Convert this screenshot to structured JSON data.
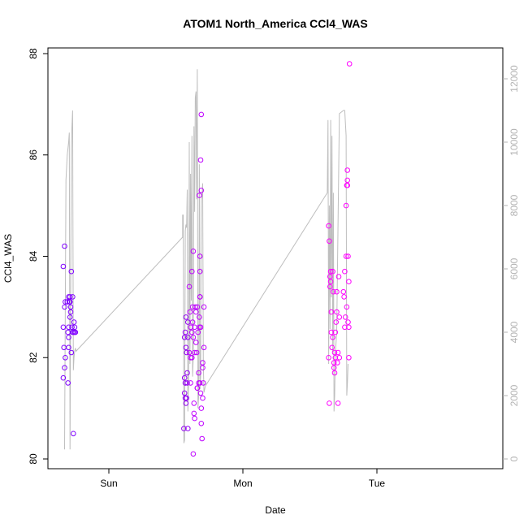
{
  "chart_data": {
    "type": "scatter",
    "title": "ATOM1 North_America CCl4_WAS",
    "xlabel": "Date",
    "ylabel": "CCl4_WAS",
    "x_ticks": [
      "Sun",
      "Mon",
      "Tue"
    ],
    "ylim": [
      80,
      88
    ],
    "y_ticks": [
      80,
      82,
      84,
      86,
      88
    ],
    "y2lim": [
      0,
      12000
    ],
    "y2_ticks": [
      0,
      2000,
      4000,
      6000,
      8000,
      10000,
      12000
    ],
    "grid": false,
    "point_series": {
      "colors": [
        "#7f00ff",
        "#9400f4",
        "#bf00ff",
        "#ff00ff"
      ],
      "points": [
        [
          -0.34,
          81.6
        ],
        [
          -0.335,
          82.2
        ],
        [
          -0.33,
          81.8
        ],
        [
          -0.325,
          82.0
        ],
        [
          -0.33,
          83.0
        ],
        [
          -0.325,
          83.1
        ],
        [
          -0.34,
          82.6
        ],
        [
          -0.34,
          83.8
        ],
        [
          -0.33,
          84.2
        ],
        [
          -0.31,
          83.1
        ],
        [
          -0.3,
          83.2
        ],
        [
          -0.295,
          83.1
        ],
        [
          -0.29,
          83.2
        ],
        [
          -0.3,
          82.6
        ],
        [
          -0.305,
          82.5
        ],
        [
          -0.3,
          82.4
        ],
        [
          -0.3,
          82.2
        ],
        [
          -0.305,
          81.5
        ],
        [
          -0.29,
          82.8
        ],
        [
          -0.285,
          82.9
        ],
        [
          -0.285,
          83.0
        ],
        [
          -0.28,
          83.7
        ],
        [
          -0.28,
          82.1
        ],
        [
          -0.275,
          82.6
        ],
        [
          -0.27,
          82.5
        ],
        [
          -0.27,
          83.2
        ],
        [
          -0.29,
          83.1
        ],
        [
          -0.26,
          82.7
        ],
        [
          -0.255,
          82.6
        ],
        [
          -0.255,
          82.5
        ],
        [
          -0.25,
          82.5
        ],
        [
          -0.265,
          82.5
        ],
        [
          -0.265,
          80.5
        ],
        [
          0.56,
          80.6
        ],
        [
          0.565,
          81.3
        ],
        [
          0.565,
          81.6
        ],
        [
          0.57,
          81.2
        ],
        [
          0.575,
          81.1
        ],
        [
          0.57,
          81.5
        ],
        [
          0.575,
          82.8
        ],
        [
          0.57,
          82.5
        ],
        [
          0.565,
          82.4
        ],
        [
          0.575,
          82.2
        ],
        [
          0.58,
          82.1
        ],
        [
          0.585,
          81.7
        ],
        [
          0.58,
          81.2
        ],
        [
          0.59,
          82.4
        ],
        [
          0.59,
          82.7
        ],
        [
          0.585,
          81.5
        ],
        [
          0.6,
          83.4
        ],
        [
          0.6,
          82.1
        ],
        [
          0.605,
          82.9
        ],
        [
          0.61,
          82.6
        ],
        [
          0.61,
          82.0
        ],
        [
          0.62,
          82.5
        ],
        [
          0.625,
          83.0
        ],
        [
          0.62,
          82.0
        ],
        [
          0.625,
          82.7
        ],
        [
          0.63,
          82.4
        ],
        [
          0.63,
          84.1
        ],
        [
          0.62,
          83.7
        ],
        [
          0.635,
          81.1
        ],
        [
          0.635,
          80.9
        ],
        [
          0.64,
          82.1
        ],
        [
          0.64,
          82.6
        ],
        [
          0.64,
          80.8
        ],
        [
          0.645,
          83.0
        ],
        [
          0.65,
          82.9
        ],
        [
          0.65,
          82.3
        ],
        [
          0.655,
          82.1
        ],
        [
          0.66,
          81.4
        ],
        [
          0.66,
          83.0
        ],
        [
          0.665,
          82.5
        ],
        [
          0.67,
          81.5
        ],
        [
          0.67,
          81.7
        ],
        [
          0.675,
          82.8
        ],
        [
          0.675,
          82.6
        ],
        [
          0.68,
          81.5
        ],
        [
          0.68,
          83.2
        ],
        [
          0.685,
          82.6
        ],
        [
          0.685,
          81.3
        ],
        [
          0.69,
          81.0
        ],
        [
          0.695,
          80.4
        ],
        [
          0.69,
          80.7
        ],
        [
          0.7,
          81.8
        ],
        [
          0.7,
          81.9
        ],
        [
          0.705,
          81.5
        ],
        [
          0.71,
          83.0
        ],
        [
          0.71,
          82.2
        ],
        [
          0.63,
          80.1
        ],
        [
          0.66,
          81.4
        ],
        [
          0.685,
          85.9
        ],
        [
          0.69,
          85.3
        ],
        [
          0.675,
          85.2
        ],
        [
          0.69,
          86.8
        ],
        [
          0.68,
          84.0
        ],
        [
          0.68,
          83.7
        ],
        [
          0.68,
          83.2
        ],
        [
          0.7,
          81.2
        ],
        [
          0.59,
          80.6
        ],
        [
          0.57,
          81.5
        ],
        [
          0.61,
          81.5
        ],
        [
          1.64,
          84.6
        ],
        [
          1.645,
          84.3
        ],
        [
          1.65,
          83.6
        ],
        [
          1.65,
          83.4
        ],
        [
          1.655,
          83.7
        ],
        [
          1.66,
          82.9
        ],
        [
          1.66,
          82.5
        ],
        [
          1.665,
          82.2
        ],
        [
          1.67,
          82.4
        ],
        [
          1.67,
          83.7
        ],
        [
          1.675,
          83.3
        ],
        [
          1.68,
          81.8
        ],
        [
          1.68,
          81.9
        ],
        [
          1.685,
          82.1
        ],
        [
          1.685,
          81.7
        ],
        [
          1.69,
          82.5
        ],
        [
          1.69,
          82.0
        ],
        [
          1.695,
          82.7
        ],
        [
          1.7,
          82.9
        ],
        [
          1.7,
          83.3
        ],
        [
          1.705,
          81.9
        ],
        [
          1.71,
          81.1
        ],
        [
          1.71,
          82.1
        ],
        [
          1.715,
          83.6
        ],
        [
          1.72,
          82.0
        ],
        [
          1.72,
          82.8
        ],
        [
          1.64,
          82.0
        ],
        [
          1.645,
          81.1
        ],
        [
          1.655,
          83.5
        ],
        [
          1.75,
          83.3
        ],
        [
          1.755,
          83.2
        ],
        [
          1.76,
          82.6
        ],
        [
          1.76,
          83.7
        ],
        [
          1.765,
          82.8
        ],
        [
          1.77,
          84.0
        ],
        [
          1.77,
          85.0
        ],
        [
          1.775,
          85.4
        ],
        [
          1.78,
          85.5
        ],
        [
          1.78,
          85.7
        ],
        [
          1.785,
          84.0
        ],
        [
          1.785,
          82.7
        ],
        [
          1.79,
          82.6
        ],
        [
          1.79,
          82.0
        ],
        [
          1.79,
          83.5
        ],
        [
          1.795,
          87.8
        ],
        [
          1.78,
          85.4
        ],
        [
          1.775,
          83.0
        ]
      ]
    },
    "line_series": {
      "color": "#bebebe",
      "x": [
        -0.33,
        -0.32,
        -0.315,
        -0.31,
        -0.3,
        -0.295,
        -0.29,
        -0.28,
        -0.275,
        -0.27,
        -0.265,
        -0.26,
        -0.255,
        -0.25,
        -0.245,
        0.55,
        0.55,
        0.555,
        0.56,
        0.565,
        0.57,
        0.575,
        0.58,
        0.585,
        0.59,
        0.595,
        0.6,
        0.605,
        0.61,
        0.615,
        0.62,
        0.625,
        0.63,
        0.635,
        0.64,
        0.645,
        0.65,
        0.655,
        0.66,
        0.665,
        0.67,
        0.675,
        0.68,
        0.685,
        0.69,
        0.695,
        0.7,
        0.705,
        0.71,
        0.72,
        1.63,
        1.635,
        1.64,
        1.645,
        1.65,
        1.655,
        1.66,
        1.665,
        1.67,
        1.675,
        1.68,
        1.685,
        1.69,
        1.7,
        1.72,
        1.75,
        1.76,
        1.77,
        1.775,
        1.78,
        1.785
      ],
      "y": [
        300,
        8800,
        9200,
        9600,
        10000,
        10300,
        300,
        9800,
        10500,
        11000,
        2800,
        3200,
        3400,
        3500,
        3400,
        7000,
        7700,
        7700,
        500,
        600,
        7200,
        7400,
        7300,
        8500,
        1500,
        2500,
        10000,
        3000,
        9000,
        5000,
        10200,
        2600,
        3200,
        10500,
        7800,
        11400,
        11600,
        8200,
        12300,
        1600,
        2000,
        9300,
        2200,
        2600,
        8200,
        8300,
        8700,
        3000,
        2100,
        2300,
        8400,
        10700,
        3000,
        8000,
        4100,
        10700,
        5100,
        10200,
        3400,
        8400,
        1500,
        2000,
        3300,
        4000,
        10900,
        11000,
        11000,
        10200,
        2000,
        2400,
        3000
      ]
    }
  }
}
